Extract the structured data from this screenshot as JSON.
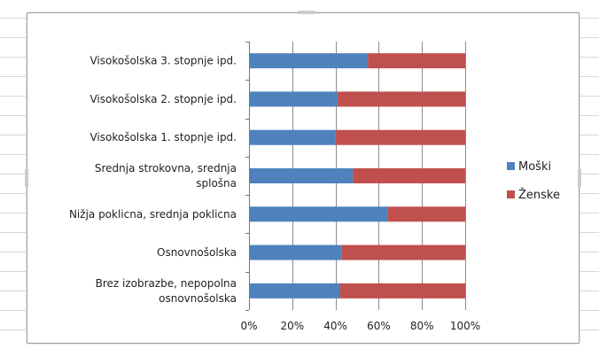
{
  "chart_data": {
    "type": "bar",
    "orientation": "horizontal",
    "stacked": "percent",
    "categories": [
      "Visokošolska 3. stopnje ipd.",
      "Visokošolska 2. stopnje ipd.",
      "Visokošolska 1. stopnje ipd.",
      "Srednja strokovna, srednja splošna",
      "Nižja poklicna, srednja poklicna",
      "Osnovnošolska",
      "Brez izobrazbe, nepopolna osnovnošolska"
    ],
    "category_lines": [
      [
        "Visokošolska 3. stopnje ipd."
      ],
      [
        "Visokošolska 2. stopnje ipd."
      ],
      [
        "Visokošolska 1. stopnje ipd."
      ],
      [
        "Srednja strokovna, srednja",
        "splošna"
      ],
      [
        "Nižja poklicna, srednja poklicna"
      ],
      [
        "Osnovnošolska"
      ],
      [
        "Brez izobrazbe, nepopolna",
        "osnovnošolska"
      ]
    ],
    "series": [
      {
        "name": "Moški",
        "color": "#4f81bd",
        "values": [
          55,
          41,
          40,
          48,
          64,
          43,
          42
        ]
      },
      {
        "name": "Ženske",
        "color": "#c0504d",
        "values": [
          45,
          59,
          60,
          52,
          36,
          57,
          58
        ]
      }
    ],
    "x_ticks": [
      "0%",
      "20%",
      "40%",
      "60%",
      "80%",
      "100%"
    ],
    "xlim": [
      0,
      100
    ],
    "grid": true,
    "legend_position": "right"
  }
}
